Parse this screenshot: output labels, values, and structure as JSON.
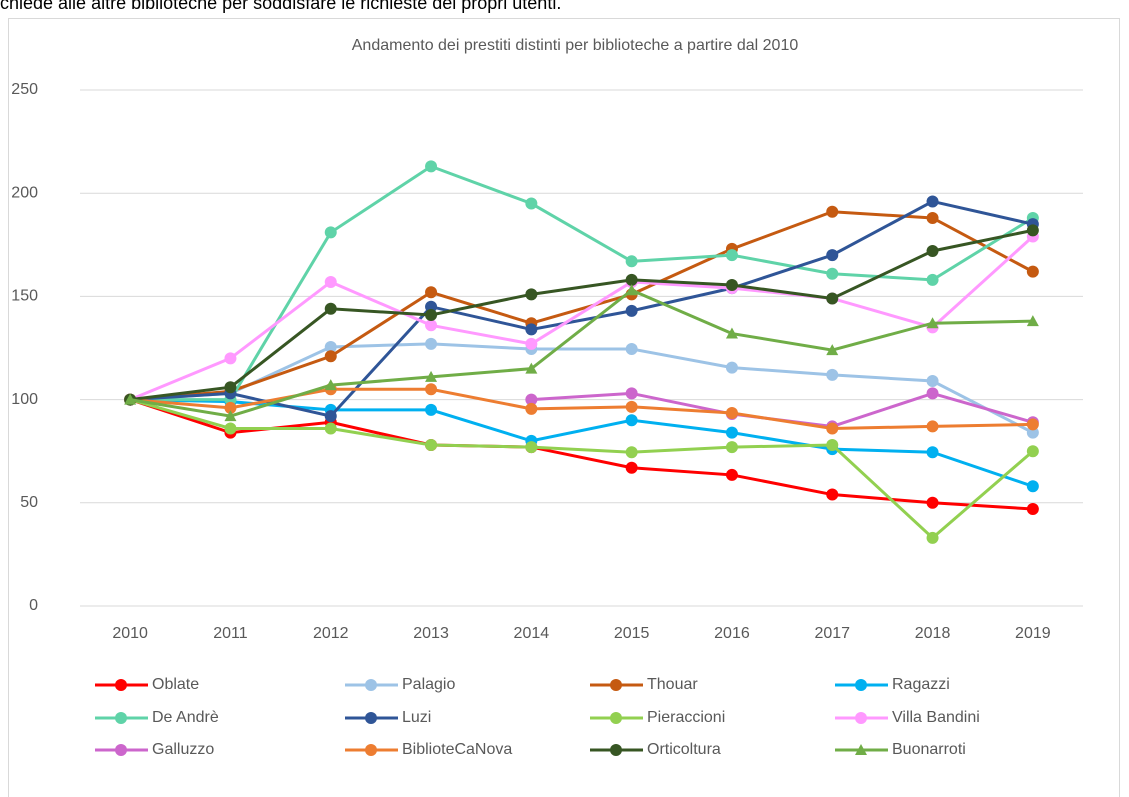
{
  "intro_text": "chiede alle altre biblioteche per soddisfare le richieste dei propri utenti.",
  "chart_data": {
    "type": "line",
    "title": "Andamento  dei prestiti distinti per biblioteche a partire dal 2010",
    "categories": [
      "2010",
      "2011",
      "2012",
      "2013",
      "2014",
      "2015",
      "2016",
      "2017",
      "2018",
      "2019"
    ],
    "ylim": [
      0,
      250
    ],
    "yticks": [
      0,
      50,
      100,
      150,
      200,
      250
    ],
    "grid": true,
    "legend": "bottom",
    "series": [
      {
        "name": "Oblate",
        "color": "#ff0000",
        "marker": "circle",
        "values": [
          100,
          84,
          89,
          78,
          77,
          67,
          63.5,
          54,
          50,
          47
        ]
      },
      {
        "name": "Palagio",
        "color": "#9dc3e6",
        "marker": "circle",
        "values": [
          100,
          103,
          125.5,
          127,
          124.5,
          124.5,
          115.5,
          112,
          109,
          84
        ]
      },
      {
        "name": "Thouar",
        "color": "#c55a11",
        "marker": "circle",
        "values": [
          100,
          104,
          121,
          152,
          137,
          151,
          173,
          191,
          188,
          162
        ]
      },
      {
        "name": "Ragazzi",
        "color": "#00b0f0",
        "marker": "circle",
        "values": [
          100,
          99,
          95,
          95,
          80,
          90,
          84,
          76,
          74.5,
          58
        ]
      },
      {
        "name": "De Andrè",
        "color": "#5fd3a8",
        "marker": "circle",
        "values": [
          100,
          100,
          181,
          213,
          195,
          167,
          170,
          161,
          158,
          188
        ]
      },
      {
        "name": "Luzi",
        "color": "#2f5597",
        "marker": "circle",
        "values": [
          100,
          103,
          92,
          145,
          134,
          143,
          154,
          170,
          196,
          185
        ]
      },
      {
        "name": "Pieraccioni",
        "color": "#92d050",
        "marker": "circle",
        "values": [
          100,
          86,
          86,
          78,
          77,
          74.5,
          77,
          78,
          33,
          75
        ]
      },
      {
        "name": "Villa Bandini",
        "color": "#ff99ff",
        "marker": "circle",
        "values": [
          100,
          120,
          157,
          136,
          127,
          157,
          154,
          149,
          135,
          179
        ]
      },
      {
        "name": " Galluzzo",
        "color": "#cc66cc",
        "marker": "circle",
        "values": [
          null,
          null,
          null,
          null,
          100,
          103,
          93,
          87,
          103,
          89
        ]
      },
      {
        "name": "BiblioteCaNova",
        "color": "#ed7d31",
        "marker": "circle",
        "values": [
          100,
          96,
          105,
          105,
          95.5,
          96.5,
          93.5,
          86,
          87,
          88
        ]
      },
      {
        "name": "Orticoltura",
        "color": "#375623",
        "marker": "circle",
        "values": [
          100,
          106,
          144,
          141,
          151,
          158,
          155.5,
          149,
          172,
          182
        ]
      },
      {
        "name": "Buonarroti",
        "color": "#70ad47",
        "marker": "triangle",
        "values": [
          100,
          92,
          107,
          111,
          115,
          153,
          132,
          124,
          137,
          138
        ]
      }
    ]
  }
}
